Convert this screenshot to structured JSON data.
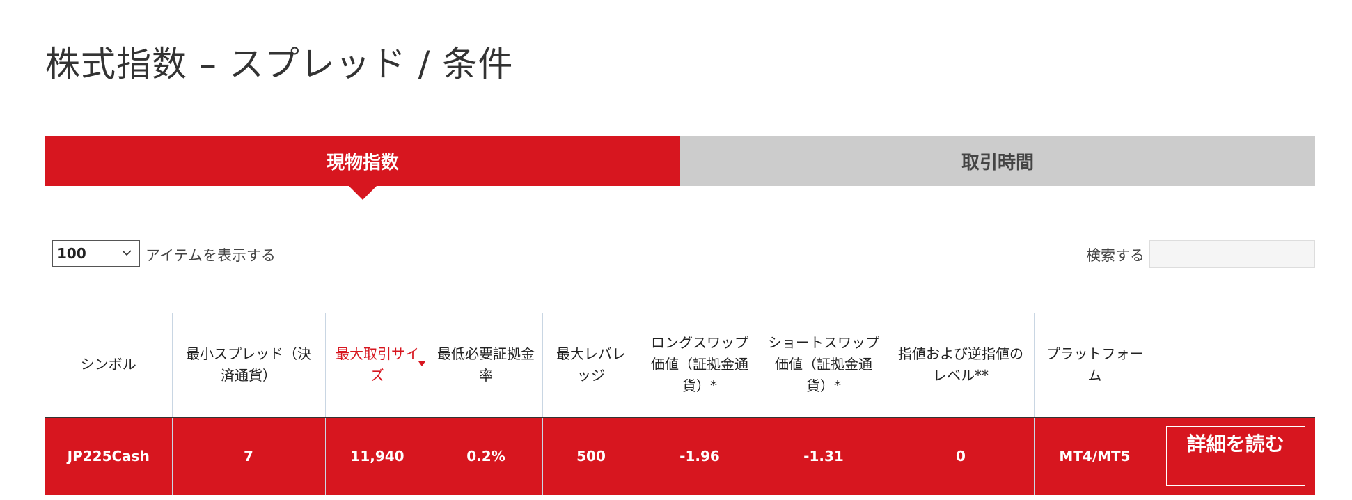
{
  "page": {
    "title": "株式指数 – スプレッド / 条件"
  },
  "tabs": [
    {
      "label": "現物指数",
      "active": true
    },
    {
      "label": "取引時間",
      "active": false
    }
  ],
  "controls": {
    "page_size_value": "100",
    "page_size_label": "アイテムを表示する",
    "search_label": "検索する",
    "search_value": ""
  },
  "table": {
    "headers": [
      "シンボル",
      "最小スプレッド（決済通貨）",
      "最大取引サイズ",
      "最低必要証拠金率",
      "最大レバレッジ",
      "ロングスワップ価値（証拠金通貨）*",
      "ショートスワップ価値（証拠金通貨）*",
      "指値および逆指値のレベル**",
      "プラットフォーム",
      ""
    ],
    "sorted_column": "最大取引サイズ",
    "rows": [
      {
        "symbol": "JP225Cash",
        "min_spread": "7",
        "max_trade_size": "11,940",
        "min_margin": "0.2%",
        "max_leverage": "500",
        "long_swap": "-1.96",
        "short_swap": "-1.31",
        "limit_stop_level": "0",
        "platform": "MT4/MT5",
        "action_label": "詳細を読む"
      }
    ]
  },
  "colors": {
    "accent": "#d7161f",
    "inactive_tab": "#cccccc",
    "header_divider": "#c9d6e3"
  }
}
